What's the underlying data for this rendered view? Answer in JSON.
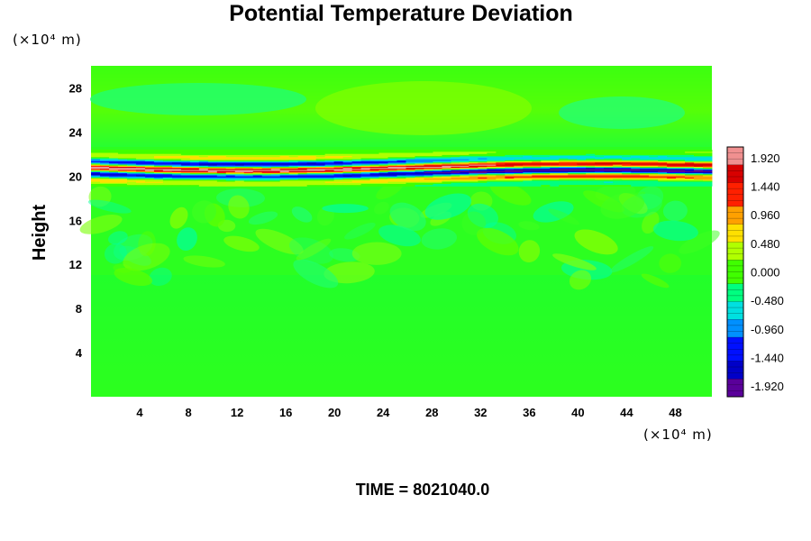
{
  "chart_data": {
    "type": "heatmap",
    "title": "Potential Temperature Deviation",
    "ylabel": "Height",
    "x_unit_label": "(×10⁴ m)",
    "y_unit_label": "(×10⁴ m)",
    "time_label": "TIME = 8021040.0",
    "x_ticks": [
      "4",
      "8",
      "12",
      "16",
      "20",
      "24",
      "28",
      "32",
      "36",
      "40",
      "44",
      "48"
    ],
    "y_ticks": [
      "4",
      "8",
      "12",
      "16",
      "20",
      "24",
      "28"
    ],
    "xlim": [
      0,
      51
    ],
    "ylim": [
      0,
      30
    ],
    "colorbar": {
      "ticks": [
        "1.920",
        "1.440",
        "0.960",
        "0.480",
        "0.000",
        "-0.480",
        "-0.960",
        "-1.440",
        "-1.920"
      ],
      "range": [
        -2.1,
        2.1
      ],
      "levels": 42,
      "colors": [
        "#5a009a",
        "#0000c8",
        "#0010ff",
        "#0090ff",
        "#00e0e0",
        "#00ff80",
        "#40ff00",
        "#b0ff00",
        "#ffe000",
        "#ffa000",
        "#ff2000",
        "#d80000",
        "#f09090"
      ]
    },
    "bands": [
      {
        "name": "upper-layer",
        "y_range": [
          22,
          30
        ],
        "value": 0.15
      },
      {
        "name": "oscillating-layer",
        "y_range": [
          19,
          22.5
        ],
        "value_range": [
          -1.92,
          1.92
        ]
      },
      {
        "name": "turbulent-layer",
        "y_range": [
          10,
          19
        ],
        "value": 0.0
      },
      {
        "name": "lower-layer",
        "y_range": [
          0,
          10
        ],
        "value": 0.05
      }
    ]
  }
}
